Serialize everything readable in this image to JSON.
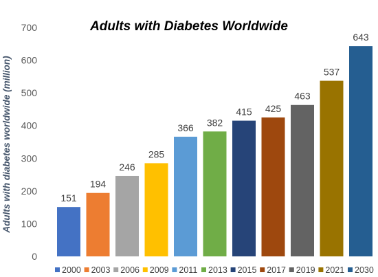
{
  "chart_data": {
    "type": "bar",
    "title": "Adults with Diabetes Worldwide",
    "ylabel": "Adults with diabetes worldwide (million)",
    "xlabel": "",
    "categories": [
      "2000",
      "2003",
      "2006",
      "2009",
      "2011",
      "2013",
      "2015",
      "2017",
      "2019",
      "2021",
      "2030"
    ],
    "values": [
      151,
      194,
      246,
      285,
      366,
      382,
      415,
      425,
      463,
      537,
      643
    ],
    "colors": [
      "#4472c4",
      "#ed7d31",
      "#a5a5a5",
      "#ffc000",
      "#5b9bd5",
      "#70ad47",
      "#264478",
      "#9e480e",
      "#636363",
      "#997300",
      "#255e91"
    ],
    "ylim": [
      0,
      700
    ],
    "yticks": [
      0,
      100,
      200,
      300,
      400,
      500,
      600,
      700
    ],
    "grid": false,
    "legend_position": "bottom"
  }
}
